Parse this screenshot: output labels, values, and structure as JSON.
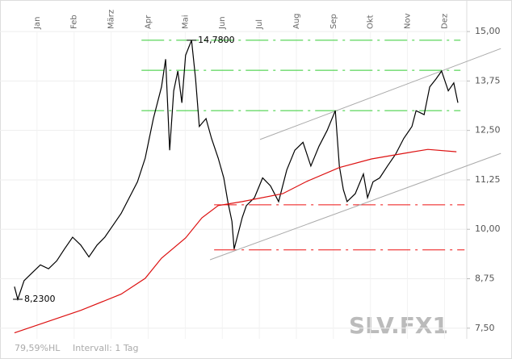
{
  "chart_data": {
    "type": "line",
    "xlim": [
      0,
      12.6
    ],
    "ylim": [
      7.23,
      15.39
    ],
    "xticks": [
      {
        "value": 1,
        "label": "Jan"
      },
      {
        "value": 2,
        "label": "Feb"
      },
      {
        "value": 3,
        "label": "März"
      },
      {
        "value": 4,
        "label": "Apr"
      },
      {
        "value": 5,
        "label": "Mai"
      },
      {
        "value": 6,
        "label": "Jun"
      },
      {
        "value": 7,
        "label": "Jul"
      },
      {
        "value": 8,
        "label": "Aug"
      },
      {
        "value": 9,
        "label": "Sep"
      },
      {
        "value": 10,
        "label": "Okt"
      },
      {
        "value": 11,
        "label": "Nov"
      },
      {
        "value": 12,
        "label": "Dez"
      }
    ],
    "yticks": [
      {
        "value": 7.5,
        "label": "7,50"
      },
      {
        "value": 8.75,
        "label": "8,75"
      },
      {
        "value": 10,
        "label": "10,00"
      },
      {
        "value": 11.25,
        "label": "11,25"
      },
      {
        "value": 12.5,
        "label": "12,50"
      },
      {
        "value": 13.75,
        "label": "13,75"
      },
      {
        "value": 15,
        "label": "15,00"
      }
    ],
    "grid": true,
    "series": [
      {
        "color": "#000000",
        "x": [
          0.39,
          0.48,
          0.65,
          0.87,
          1.09,
          1.31,
          1.53,
          1.74,
          1.96,
          2.18,
          2.4,
          2.62,
          2.83,
          3.05,
          3.27,
          3.49,
          3.71,
          3.92,
          4.14,
          4.36,
          4.47,
          4.58,
          4.69,
          4.8,
          4.91,
          5.01,
          5.17,
          5.28,
          5.38,
          5.56,
          5.71,
          5.89,
          6.04,
          6.15,
          6.26,
          6.32,
          6.43,
          6.54,
          6.65,
          6.87,
          7.09,
          7.3,
          7.52,
          7.74,
          7.96,
          8.18,
          8.39,
          8.61,
          8.83,
          9.05,
          9.16,
          9.27,
          9.37,
          9.59,
          9.81,
          9.92,
          10.07,
          10.25,
          10.46,
          10.68,
          10.9,
          11.12,
          11.23,
          11.45,
          11.6,
          11.77,
          11.92,
          12.1,
          12.25,
          12.36
        ],
        "values": [
          8.55,
          8.23,
          8.7,
          8.9,
          9.1,
          9.0,
          9.2,
          9.5,
          9.8,
          9.6,
          9.3,
          9.6,
          9.8,
          10.1,
          10.4,
          10.8,
          11.2,
          11.8,
          12.8,
          13.6,
          14.3,
          12.0,
          13.5,
          14.0,
          13.2,
          14.4,
          14.78,
          13.8,
          12.6,
          12.8,
          12.3,
          11.8,
          11.3,
          10.7,
          10.2,
          9.5,
          9.9,
          10.3,
          10.6,
          10.8,
          11.3,
          11.1,
          10.7,
          11.5,
          12.0,
          12.2,
          11.6,
          12.1,
          12.5,
          13.0,
          11.6,
          11.0,
          10.7,
          10.9,
          11.4,
          10.8,
          11.2,
          11.3,
          11.6,
          11.9,
          12.3,
          12.6,
          13.0,
          12.9,
          13.6,
          13.8,
          14.0,
          13.5,
          13.7,
          13.2
        ]
      },
      {
        "color": "#dd1111",
        "x": [
          0.39,
          2.18,
          3.27,
          3.92,
          4.36,
          5.01,
          5.45,
          5.89,
          6.54,
          7.63,
          8.28,
          9.16,
          10.03,
          10.9,
          11.55,
          12.32
        ],
        "values": [
          7.38,
          7.95,
          8.36,
          8.76,
          9.27,
          9.78,
          10.29,
          10.6,
          10.7,
          10.9,
          11.21,
          11.56,
          11.78,
          11.92,
          12.02,
          11.96
        ]
      }
    ],
    "levels": [
      {
        "value": 14.78,
        "color": "#33cc33",
        "x": [
          3.82,
          12.43
        ]
      },
      {
        "value": 14.02,
        "color": "#33cc33",
        "x": [
          3.82,
          12.43
        ]
      },
      {
        "value": 13.0,
        "color": "#33cc33",
        "x": [
          3.82,
          12.43
        ]
      },
      {
        "value": 10.62,
        "color": "#ee1111",
        "x": [
          5.78,
          12.54
        ]
      },
      {
        "value": 9.48,
        "color": "#ee1111",
        "x": [
          5.78,
          12.54
        ]
      }
    ],
    "trendlines": [
      {
        "color": "#aaaaaa",
        "x": [
          7.02,
          13.52
        ],
        "values": [
          12.27,
          14.57
        ]
      },
      {
        "color": "#aaaaaa",
        "x": [
          5.67,
          13.52
        ],
        "values": [
          9.23,
          11.92
        ]
      }
    ],
    "annotations": [
      {
        "text": "8,2300",
        "x": 0.48,
        "value": 8.23
      },
      {
        "text": "14,7800",
        "x": 5.17,
        "value": 14.78
      }
    ],
    "footer": [
      "79,59%HL",
      "Intervall: 1 Tag"
    ],
    "watermark": "SLV.FX1"
  }
}
